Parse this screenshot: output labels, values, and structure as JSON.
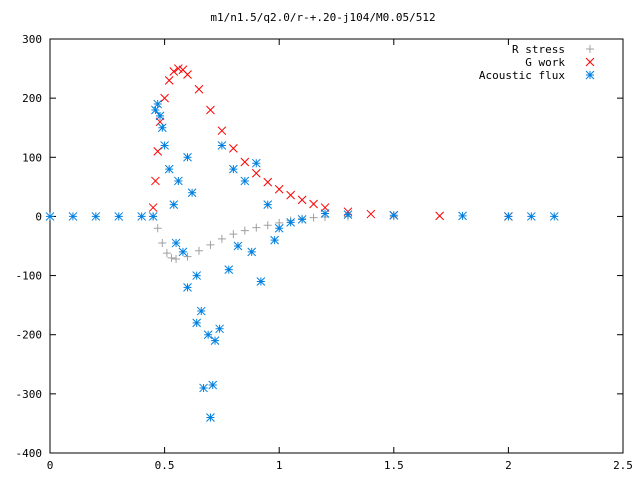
{
  "chart_data": {
    "type": "scatter",
    "title": "m1/n1.5/q2.0/r-+.20-j104/M0.05/512",
    "xlabel": "",
    "ylabel": "",
    "xlim": [
      0,
      2.5
    ],
    "ylim": [
      -400,
      300
    ],
    "x_ticks": [
      "0",
      "0.5",
      "1",
      "1.5",
      "2",
      "2.5"
    ],
    "y_ticks": [
      "300",
      "200",
      "100",
      "0",
      "-100",
      "-200",
      "-300",
      "-400"
    ],
    "grid": false,
    "legend_position": "top-right",
    "series": [
      {
        "name": "R stress",
        "marker": "plus",
        "color": "#a0a0a0",
        "points": [
          [
            0.45,
            0
          ],
          [
            0.47,
            -20
          ],
          [
            0.49,
            -45
          ],
          [
            0.51,
            -62
          ],
          [
            0.53,
            -70
          ],
          [
            0.55,
            -72
          ],
          [
            0.6,
            -68
          ],
          [
            0.65,
            -58
          ],
          [
            0.7,
            -48
          ],
          [
            0.75,
            -38
          ],
          [
            0.8,
            -30
          ],
          [
            0.85,
            -24
          ],
          [
            0.9,
            -19
          ],
          [
            0.95,
            -15
          ],
          [
            1.0,
            -11
          ],
          [
            1.05,
            -7
          ],
          [
            1.1,
            -4
          ],
          [
            1.15,
            -2
          ],
          [
            1.2,
            -1
          ],
          [
            1.3,
            0
          ],
          [
            1.5,
            0
          ],
          [
            2.0,
            0
          ]
        ]
      },
      {
        "name": "G work",
        "marker": "cross",
        "color": "#ff0000",
        "points": [
          [
            0.45,
            15
          ],
          [
            0.46,
            60
          ],
          [
            0.47,
            110
          ],
          [
            0.48,
            160
          ],
          [
            0.5,
            200
          ],
          [
            0.52,
            230
          ],
          [
            0.54,
            245
          ],
          [
            0.56,
            250
          ],
          [
            0.58,
            248
          ],
          [
            0.6,
            240
          ],
          [
            0.65,
            215
          ],
          [
            0.7,
            180
          ],
          [
            0.75,
            145
          ],
          [
            0.8,
            115
          ],
          [
            0.85,
            92
          ],
          [
            0.9,
            73
          ],
          [
            0.95,
            58
          ],
          [
            1.0,
            46
          ],
          [
            1.05,
            36
          ],
          [
            1.1,
            28
          ],
          [
            1.15,
            21
          ],
          [
            1.2,
            15
          ],
          [
            1.3,
            8
          ],
          [
            1.4,
            4
          ],
          [
            1.5,
            2
          ],
          [
            1.7,
            1
          ],
          [
            2.0,
            0
          ]
        ]
      },
      {
        "name": "Acoustic flux",
        "marker": "star",
        "color": "#0080e0",
        "points": [
          [
            0.0,
            0
          ],
          [
            0.1,
            0
          ],
          [
            0.2,
            0
          ],
          [
            0.3,
            0
          ],
          [
            0.4,
            0
          ],
          [
            0.45,
            0
          ],
          [
            0.46,
            180
          ],
          [
            0.47,
            190
          ],
          [
            0.48,
            170
          ],
          [
            0.49,
            150
          ],
          [
            0.5,
            120
          ],
          [
            0.52,
            80
          ],
          [
            0.54,
            20
          ],
          [
            0.55,
            -45
          ],
          [
            0.56,
            60
          ],
          [
            0.58,
            -60
          ],
          [
            0.6,
            100
          ],
          [
            0.6,
            -120
          ],
          [
            0.62,
            40
          ],
          [
            0.64,
            -100
          ],
          [
            0.64,
            -180
          ],
          [
            0.66,
            -160
          ],
          [
            0.67,
            -290
          ],
          [
            0.69,
            -200
          ],
          [
            0.7,
            -340
          ],
          [
            0.71,
            -285
          ],
          [
            0.72,
            -210
          ],
          [
            0.74,
            -190
          ],
          [
            0.75,
            120
          ],
          [
            0.78,
            -90
          ],
          [
            0.8,
            80
          ],
          [
            0.82,
            -50
          ],
          [
            0.85,
            60
          ],
          [
            0.88,
            -60
          ],
          [
            0.9,
            90
          ],
          [
            0.92,
            -110
          ],
          [
            0.95,
            20
          ],
          [
            0.98,
            -40
          ],
          [
            1.0,
            -20
          ],
          [
            1.05,
            -10
          ],
          [
            1.1,
            -5
          ],
          [
            1.2,
            5
          ],
          [
            1.3,
            3
          ],
          [
            1.5,
            2
          ],
          [
            1.8,
            1
          ],
          [
            2.0,
            0
          ],
          [
            2.1,
            0
          ],
          [
            2.2,
            0
          ]
        ]
      }
    ]
  }
}
